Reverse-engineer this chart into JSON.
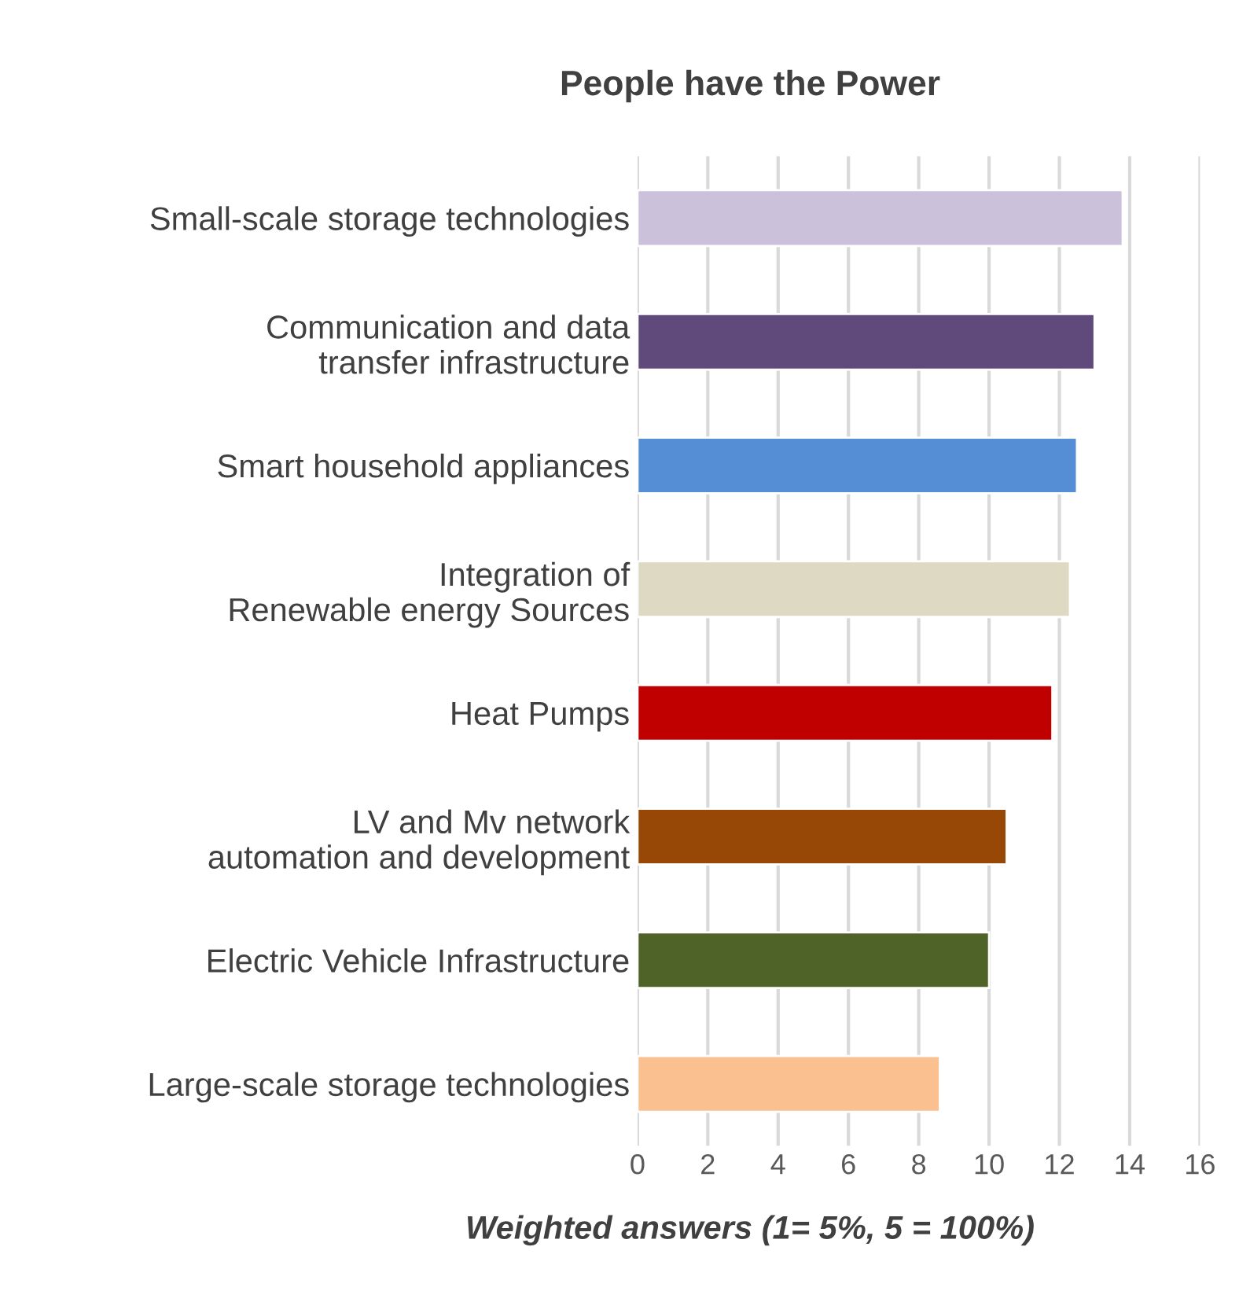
{
  "chart_data": {
    "type": "bar",
    "orientation": "horizontal",
    "title": "People have the Power",
    "xlabel": "Weighted answers (1= 5%, 5 = 100%)",
    "categories": [
      "Small-scale storage technologies",
      "Communication and data transfer infrastructure",
      "Smart household appliances",
      "Integration of Renewable energy Sources",
      "Heat Pumps",
      "LV and Mv network automation and development",
      "Electric Vehicle Infrastructure",
      "Large-scale storage technologies"
    ],
    "values": [
      13.8,
      13.0,
      12.5,
      12.3,
      11.8,
      10.5,
      10.0,
      8.6
    ],
    "colors": [
      "#ccc1da",
      "#604a7b",
      "#558ed5",
      "#ddd9c3",
      "#c00000",
      "#974806",
      "#4f6228",
      "#fac090"
    ],
    "xlim": [
      0,
      16
    ],
    "xticks": [
      0,
      2,
      4,
      6,
      8,
      10,
      12,
      14,
      16
    ],
    "grid": "x"
  }
}
